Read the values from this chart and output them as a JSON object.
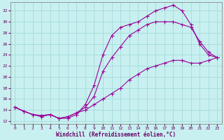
{
  "xlabel": "Windchill (Refroidissement éolien,°C)",
  "bg_color": "#c8f0f0",
  "grid_color": "#aadddd",
  "line_color": "#990099",
  "xlim": [
    -0.5,
    23.5
  ],
  "ylim": [
    11.5,
    33.5
  ],
  "yticks": [
    12,
    14,
    16,
    18,
    20,
    22,
    24,
    26,
    28,
    30,
    32
  ],
  "xticks": [
    0,
    1,
    2,
    3,
    4,
    5,
    6,
    7,
    8,
    9,
    10,
    11,
    12,
    13,
    14,
    15,
    16,
    17,
    18,
    19,
    20,
    21,
    22,
    23
  ],
  "line1_x": [
    0,
    1,
    2,
    3,
    4,
    5,
    6,
    7,
    8,
    9,
    10,
    11,
    12,
    13,
    14,
    15,
    16,
    17,
    18,
    19,
    20,
    21,
    22,
    23
  ],
  "line1_y": [
    14.5,
    13.8,
    13.2,
    12.8,
    13.2,
    12.5,
    12.5,
    13.2,
    15.0,
    18.5,
    24.0,
    27.5,
    29.0,
    29.5,
    30.0,
    31.0,
    32.0,
    32.5,
    33.0,
    32.0,
    29.5,
    26.0,
    24.0,
    23.5
  ],
  "line2_x": [
    0,
    1,
    2,
    3,
    4,
    5,
    6,
    7,
    8,
    9,
    10,
    11,
    12,
    13,
    14,
    15,
    16,
    17,
    18,
    19,
    20,
    21,
    22,
    23
  ],
  "line2_y": [
    14.5,
    13.8,
    13.2,
    13.0,
    13.2,
    12.5,
    12.8,
    13.5,
    14.5,
    16.5,
    21.0,
    23.5,
    25.5,
    27.5,
    28.5,
    29.5,
    30.0,
    30.0,
    30.0,
    29.5,
    29.0,
    26.5,
    24.5,
    23.5
  ],
  "line3_x": [
    0,
    1,
    2,
    3,
    4,
    5,
    6,
    7,
    8,
    9,
    10,
    11,
    12,
    13,
    14,
    15,
    16,
    17,
    18,
    19,
    20,
    21,
    22,
    23
  ],
  "line3_y": [
    14.5,
    13.8,
    13.2,
    13.0,
    13.2,
    12.5,
    12.8,
    13.5,
    14.0,
    15.0,
    16.0,
    17.0,
    18.0,
    19.5,
    20.5,
    21.5,
    22.0,
    22.5,
    23.0,
    23.0,
    22.5,
    22.5,
    23.0,
    23.5
  ]
}
